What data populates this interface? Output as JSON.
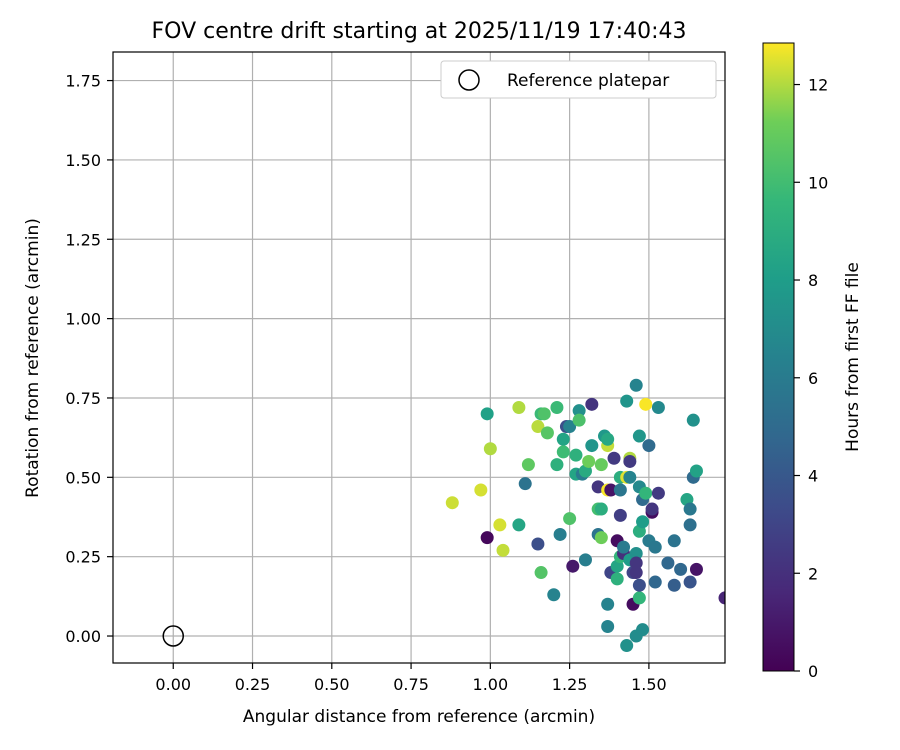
{
  "chart_data": {
    "type": "scatter",
    "title": "FOV centre drift starting at 2025/11/19 17:40:43",
    "xlabel": "Angular distance from reference (arcmin)",
    "ylabel": "Rotation from reference (arcmin)",
    "xlim": [
      -0.19,
      1.74
    ],
    "ylim": [
      -0.085,
      1.84
    ],
    "xticks": [
      0.0,
      0.25,
      0.5,
      0.75,
      1.0,
      1.25,
      1.5
    ],
    "xtick_labels": [
      "0.00",
      "0.25",
      "0.50",
      "0.75",
      "1.00",
      "1.25",
      "1.50"
    ],
    "yticks": [
      0.0,
      0.25,
      0.5,
      0.75,
      1.0,
      1.25,
      1.5,
      1.75
    ],
    "ytick_labels": [
      "0.00",
      "0.25",
      "0.50",
      "0.75",
      "1.00",
      "1.25",
      "1.50",
      "1.75"
    ],
    "grid": true,
    "legend": {
      "label": "Reference platepar",
      "position": "top-right"
    },
    "reference_point": {
      "x": 0.0,
      "y": 0.0
    },
    "colorbar": {
      "label": "Hours from first FF file",
      "colormap": "viridis",
      "range": [
        0,
        12.85
      ],
      "ticks": [
        0,
        2,
        4,
        6,
        8,
        10,
        12
      ],
      "tick_labels": [
        "0",
        "2",
        "4",
        "6",
        "8",
        "10",
        "12"
      ]
    },
    "points": [
      [
        0.88,
        0.42,
        12.3
      ],
      [
        0.97,
        0.46,
        12.4
      ],
      [
        0.99,
        0.7,
        8.2
      ],
      [
        1.0,
        0.59,
        12.0
      ],
      [
        0.99,
        0.31,
        0.3
      ],
      [
        1.03,
        0.35,
        12.4
      ],
      [
        1.04,
        0.27,
        12.2
      ],
      [
        1.09,
        0.72,
        12.0
      ],
      [
        1.09,
        0.35,
        8.5
      ],
      [
        1.11,
        0.48,
        5.5
      ],
      [
        1.12,
        0.54,
        10.8
      ],
      [
        1.15,
        0.29,
        3.5
      ],
      [
        1.15,
        0.66,
        12.1
      ],
      [
        1.16,
        0.7,
        9.8
      ],
      [
        1.17,
        0.7,
        10.4
      ],
      [
        1.16,
        0.2,
        10.5
      ],
      [
        1.18,
        0.64,
        10.6
      ],
      [
        1.2,
        0.13,
        6.5
      ],
      [
        1.21,
        0.54,
        9.2
      ],
      [
        1.21,
        0.72,
        9.8
      ],
      [
        1.22,
        0.32,
        6.2
      ],
      [
        1.23,
        0.62,
        8.4
      ],
      [
        1.23,
        0.58,
        9.9
      ],
      [
        1.24,
        0.66,
        3.5
      ],
      [
        1.25,
        0.66,
        6.4
      ],
      [
        1.25,
        0.37,
        10.4
      ],
      [
        1.26,
        0.22,
        1.0
      ],
      [
        1.27,
        0.57,
        9.2
      ],
      [
        1.27,
        0.51,
        8.4
      ],
      [
        1.28,
        0.71,
        7.2
      ],
      [
        1.28,
        0.68,
        10.3
      ],
      [
        1.29,
        0.51,
        6.0
      ],
      [
        1.3,
        0.52,
        8.8
      ],
      [
        1.3,
        0.24,
        6.2
      ],
      [
        1.31,
        0.55,
        11.2
      ],
      [
        1.32,
        0.73,
        2.2
      ],
      [
        1.32,
        0.6,
        7.5
      ],
      [
        1.34,
        0.47,
        2.3
      ],
      [
        1.34,
        0.4,
        10.1
      ],
      [
        1.34,
        0.32,
        5.5
      ],
      [
        1.35,
        0.54,
        11.0
      ],
      [
        1.35,
        0.4,
        9.0
      ],
      [
        1.35,
        0.31,
        11.2
      ],
      [
        1.36,
        0.63,
        7.7
      ],
      [
        1.37,
        0.6,
        12.2
      ],
      [
        1.37,
        0.62,
        8.6
      ],
      [
        1.37,
        0.46,
        12.8
      ],
      [
        1.37,
        0.03,
        6.5
      ],
      [
        1.37,
        0.1,
        6.5
      ],
      [
        1.38,
        0.46,
        0.8
      ],
      [
        1.38,
        0.2,
        3.0
      ],
      [
        1.39,
        0.56,
        2.5
      ],
      [
        1.4,
        0.18,
        9.2
      ],
      [
        1.4,
        0.22,
        8.5
      ],
      [
        1.4,
        0.3,
        0.5
      ],
      [
        1.41,
        0.25,
        9.5
      ],
      [
        1.41,
        0.5,
        9.0
      ],
      [
        1.41,
        0.46,
        5.7
      ],
      [
        1.41,
        0.38,
        2.7
      ],
      [
        1.42,
        0.26,
        2.0
      ],
      [
        1.42,
        0.28,
        6.0
      ],
      [
        1.43,
        0.74,
        7.5
      ],
      [
        1.43,
        0.5,
        12.5
      ],
      [
        1.43,
        -0.03,
        7.3
      ],
      [
        1.44,
        0.56,
        12.0
      ],
      [
        1.44,
        0.55,
        2.5
      ],
      [
        1.44,
        0.5,
        6.5
      ],
      [
        1.44,
        0.24,
        8.0
      ],
      [
        1.45,
        0.1,
        0.5
      ],
      [
        1.45,
        0.2,
        3.0
      ],
      [
        1.46,
        0.79,
        6.5
      ],
      [
        1.46,
        0.26,
        7.2
      ],
      [
        1.46,
        0.2,
        2.3
      ],
      [
        1.46,
        0.23,
        2.3
      ],
      [
        1.46,
        0.0,
        7.0
      ],
      [
        1.47,
        0.63,
        7.6
      ],
      [
        1.47,
        0.47,
        6.8
      ],
      [
        1.47,
        0.33,
        9.0
      ],
      [
        1.47,
        0.12,
        9.5
      ],
      [
        1.47,
        0.16,
        3.5
      ],
      [
        1.48,
        0.43,
        5.0
      ],
      [
        1.48,
        0.36,
        8.0
      ],
      [
        1.48,
        0.02,
        7.0
      ],
      [
        1.49,
        0.73,
        12.8
      ],
      [
        1.49,
        0.45,
        9.5
      ],
      [
        1.5,
        0.6,
        5.0
      ],
      [
        1.5,
        0.3,
        6.0
      ],
      [
        1.51,
        0.39,
        0.5
      ],
      [
        1.51,
        0.4,
        2.3
      ],
      [
        1.52,
        0.17,
        4.8
      ],
      [
        1.52,
        0.28,
        5.8
      ],
      [
        1.53,
        0.45,
        2.5
      ],
      [
        1.53,
        0.72,
        6.8
      ],
      [
        1.56,
        0.23,
        4.8
      ],
      [
        1.58,
        0.16,
        4.3
      ],
      [
        1.58,
        0.3,
        5.5
      ],
      [
        1.6,
        0.21,
        4.8
      ],
      [
        1.62,
        0.43,
        8.5
      ],
      [
        1.63,
        0.4,
        5.8
      ],
      [
        1.63,
        0.35,
        5.3
      ],
      [
        1.63,
        0.17,
        3.8
      ],
      [
        1.64,
        0.68,
        7.3
      ],
      [
        1.64,
        0.5,
        5.0
      ],
      [
        1.65,
        0.52,
        8.3
      ],
      [
        1.65,
        0.21,
        0.8
      ],
      [
        1.74,
        0.12,
        1.5
      ]
    ]
  }
}
